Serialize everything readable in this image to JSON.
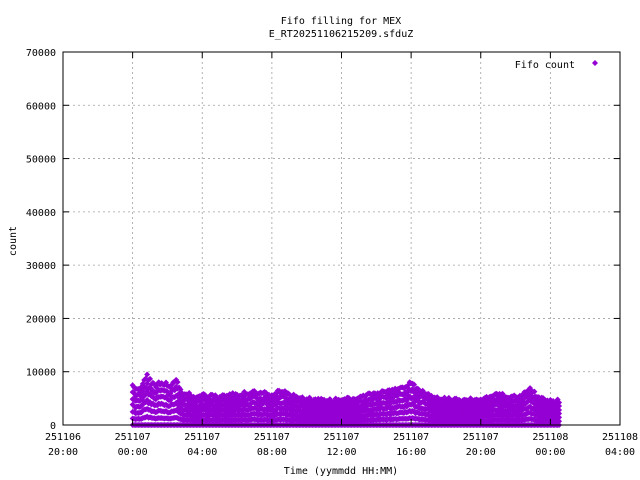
{
  "chart_data": {
    "type": "scatter",
    "title": "Fifo filling for MEX",
    "subtitle": "E_RT20251106215209.sfduZ",
    "xlabel": "Time (yymmdd HH:MM)",
    "ylabel": "count",
    "ylim": [
      0,
      70000
    ],
    "xlim": [
      "2025-11-06 20:00",
      "2025-11-08 04:00"
    ],
    "y_ticks": [
      "0",
      "10000",
      "20000",
      "30000",
      "40000",
      "50000",
      "60000",
      "70000"
    ],
    "x_ticks": [
      {
        "date": "251106",
        "time": "20:00"
      },
      {
        "date": "251107",
        "time": "00:00"
      },
      {
        "date": "251107",
        "time": "04:00"
      },
      {
        "date": "251107",
        "time": "08:00"
      },
      {
        "date": "251107",
        "time": "12:00"
      },
      {
        "date": "251107",
        "time": "16:00"
      },
      {
        "date": "251107",
        "time": "20:00"
      },
      {
        "date": "251108",
        "time": "00:00"
      },
      {
        "date": "251108",
        "time": "04:00"
      }
    ],
    "grid": true,
    "legend_position": "top-right",
    "series": [
      {
        "name": "Fifo count",
        "color": "#9400d3",
        "marker": "diamond",
        "x_range": [
          "2025-11-07 00:00",
          "2025-11-08 00:30"
        ],
        "peak_envelope": [
          {
            "x": "2025-11-07 00:00",
            "y": 7800
          },
          {
            "x": "2025-11-07 00:30",
            "y": 7500
          },
          {
            "x": "2025-11-07 00:45",
            "y": 10000
          },
          {
            "x": "2025-11-07 01:15",
            "y": 8500
          },
          {
            "x": "2025-11-07 02:00",
            "y": 8000
          },
          {
            "x": "2025-11-07 02:30",
            "y": 9200
          },
          {
            "x": "2025-11-07 02:50",
            "y": 6500
          },
          {
            "x": "2025-11-07 03:30",
            "y": 6000
          },
          {
            "x": "2025-11-07 05:00",
            "y": 5800
          },
          {
            "x": "2025-11-07 06:00",
            "y": 6200
          },
          {
            "x": "2025-11-07 07:00",
            "y": 6800
          },
          {
            "x": "2025-11-07 08:00",
            "y": 6200
          },
          {
            "x": "2025-11-07 08:30",
            "y": 6900
          },
          {
            "x": "2025-11-07 09:30",
            "y": 5500
          },
          {
            "x": "2025-11-07 11:00",
            "y": 5000
          },
          {
            "x": "2025-11-07 12:00",
            "y": 5200
          },
          {
            "x": "2025-11-07 13:00",
            "y": 5800
          },
          {
            "x": "2025-11-07 14:00",
            "y": 6500
          },
          {
            "x": "2025-11-07 15:00",
            "y": 7000
          },
          {
            "x": "2025-11-07 16:00",
            "y": 8600
          },
          {
            "x": "2025-11-07 16:30",
            "y": 7000
          },
          {
            "x": "2025-11-07 17:30",
            "y": 5500
          },
          {
            "x": "2025-11-07 19:00",
            "y": 5000
          },
          {
            "x": "2025-11-07 20:00",
            "y": 5200
          },
          {
            "x": "2025-11-07 21:00",
            "y": 6200
          },
          {
            "x": "2025-11-07 22:00",
            "y": 5500
          },
          {
            "x": "2025-11-07 22:50",
            "y": 7500
          },
          {
            "x": "2025-11-07 23:20",
            "y": 5500
          },
          {
            "x": "2025-11-08 00:30",
            "y": 4800
          }
        ],
        "min_value": 0
      }
    ]
  }
}
